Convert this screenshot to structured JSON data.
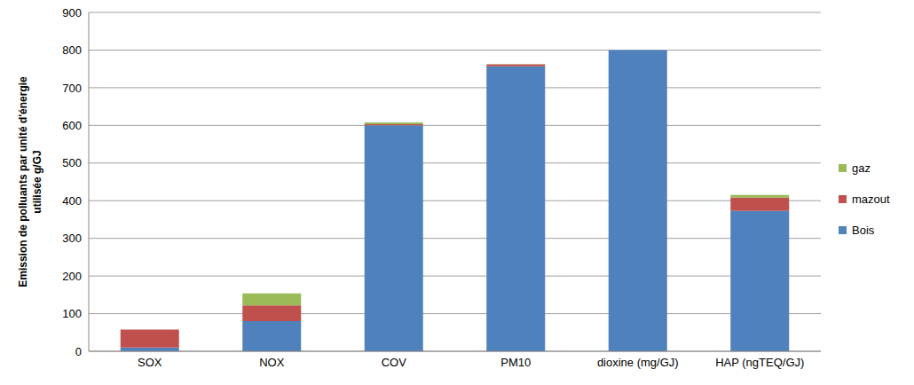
{
  "chart_data": {
    "type": "bar",
    "stacked": true,
    "grid": true,
    "legend": "right",
    "y_label": "Emission de polluants par unité d'énergie utilisée g/GJ",
    "categories": [
      "SOX",
      "NOX",
      "COV",
      "PM10",
      "dioxine (mg/GJ)",
      "HAP (ngTEQ/GJ)"
    ],
    "series": [
      {
        "name": "Bois",
        "color": "#4f81bd",
        "values": [
          10,
          80,
          600,
          757,
          800,
          373
        ]
      },
      {
        "name": "mazout",
        "color": "#c0504d",
        "values": [
          48,
          42,
          3,
          5,
          0,
          35
        ]
      },
      {
        "name": "gaz",
        "color": "#9bbb59",
        "values": [
          0,
          32,
          5,
          1,
          0,
          7
        ]
      }
    ],
    "ylim": [
      0,
      900
    ],
    "yticks": [
      0,
      100,
      200,
      300,
      400,
      500,
      600,
      700,
      800,
      900
    ]
  }
}
